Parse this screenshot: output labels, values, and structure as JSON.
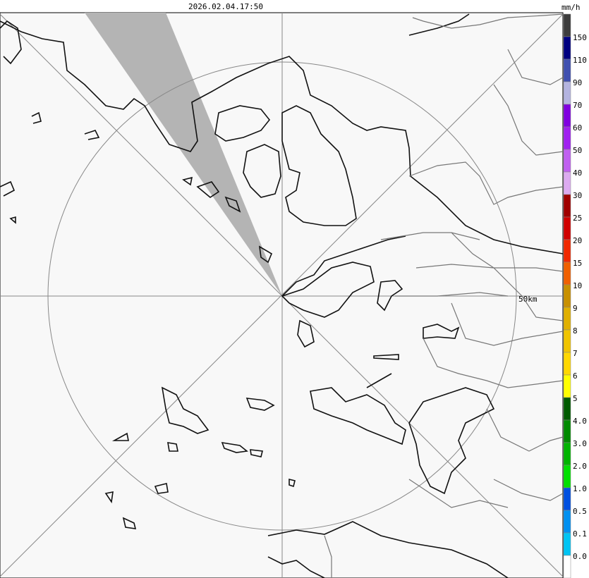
{
  "header": {
    "time": "2026.02.04.17:50"
  },
  "map": {
    "range_label": "50km"
  },
  "colorbar": {
    "unit": "mm/h",
    "labels": [
      "150",
      "110",
      "90",
      "70",
      "60",
      "50",
      "40",
      "30",
      "25",
      "20",
      "15",
      "10",
      "9",
      "8",
      "7",
      "6",
      "5",
      "4.0",
      "3.0",
      "2.0",
      "1.0",
      "0.5",
      "0.1",
      "0.0"
    ],
    "colors": [
      "#3c3c3c",
      "#000080",
      "#4050b0",
      "#b4b4e0",
      "#8000e0",
      "#a020f0",
      "#c060f0",
      "#dcaaf0",
      "#a00000",
      "#d00000",
      "#f02800",
      "#f06000",
      "#c89000",
      "#e0b000",
      "#f0c400",
      "#ffd800",
      "#ffff00",
      "#005a00",
      "#008a00",
      "#00b400",
      "#00e000",
      "#0050e0",
      "#0090f0",
      "#00c4f4",
      "#ffffff"
    ]
  }
}
